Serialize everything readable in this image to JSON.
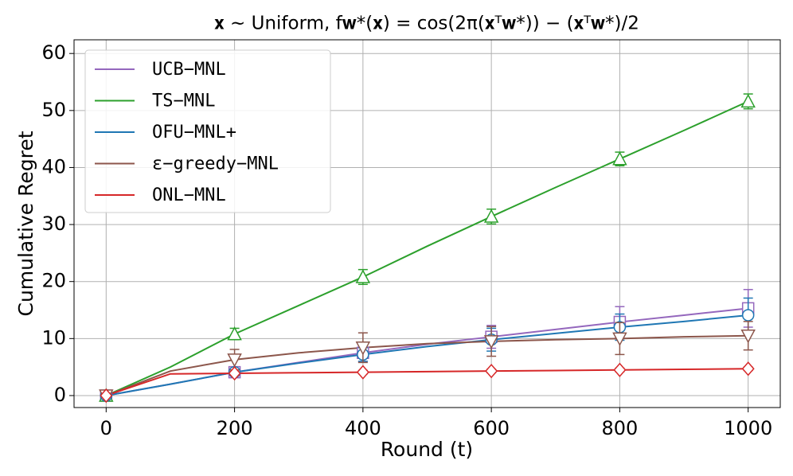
{
  "chart_data": {
    "type": "line",
    "title": "𝐱 ∼ Uniform,    f𝐰*(𝐱) = cos(2π(𝐱ᵀ𝐰*)) − (𝐱ᵀ𝐰*)/2",
    "x_label": "Round (t)",
    "y_label": "Cumulative Regret",
    "x": [
      0,
      100,
      200,
      300,
      400,
      500,
      600,
      700,
      800,
      900,
      1000
    ],
    "series": [
      {
        "name": "UCB−MNL",
        "color": "#9467bd",
        "marker": "square",
        "values": [
          0,
          2,
          4.1,
          5.8,
          7.5,
          9,
          10.3,
          11.6,
          12.9,
          14.1,
          15.3
        ],
        "errors": [
          0.2,
          null,
          0.5,
          null,
          1.5,
          null,
          2,
          null,
          2.7,
          null,
          3.3
        ]
      },
      {
        "name": "TS−MNL",
        "color": "#2ca02c",
        "marker": "triangle-up",
        "values": [
          0,
          5,
          10.8,
          15.8,
          20.8,
          26.2,
          31.4,
          36.5,
          41.5,
          46.5,
          51.6
        ],
        "errors": [
          0.2,
          null,
          1,
          null,
          1.3,
          null,
          1.3,
          null,
          1.2,
          null,
          1.3
        ]
      },
      {
        "name": "OFU−MNL+",
        "color": "#1f77b4",
        "marker": "circle",
        "values": [
          0,
          2,
          4.1,
          5.7,
          7.2,
          8.6,
          9.8,
          10.9,
          12,
          13,
          14.1
        ],
        "errors": [
          0.2,
          null,
          0.5,
          null,
          1.2,
          null,
          2,
          null,
          2.3,
          null,
          3
        ]
      },
      {
        "name": "ε−greedy−MNL",
        "color": "#8c564b",
        "marker": "triangle-down",
        "values": [
          0,
          4.3,
          6.3,
          7.5,
          8.4,
          9.1,
          9.5,
          9.8,
          10,
          10.3,
          10.5
        ],
        "errors": [
          0.2,
          null,
          1.8,
          null,
          2.6,
          null,
          2.6,
          null,
          2.8,
          null,
          2.5
        ]
      },
      {
        "name": "ONL−MNL",
        "color": "#d62728",
        "marker": "diamond",
        "values": [
          0,
          3.8,
          3.9,
          4,
          4.1,
          4.2,
          4.3,
          4.4,
          4.5,
          4.6,
          4.7
        ],
        "errors": [
          0.2,
          null,
          0.3,
          null,
          0.3,
          null,
          0.3,
          null,
          0.3,
          null,
          0.3
        ]
      }
    ],
    "xlim": [
      -50,
      1050
    ],
    "xticks": [
      0,
      200,
      400,
      600,
      800,
      1000
    ],
    "ylim": [
      -2.1,
      62.4
    ],
    "yticks": [
      0,
      10,
      20,
      30,
      40,
      50,
      60
    ],
    "grid": true,
    "legend": "upper-left"
  }
}
